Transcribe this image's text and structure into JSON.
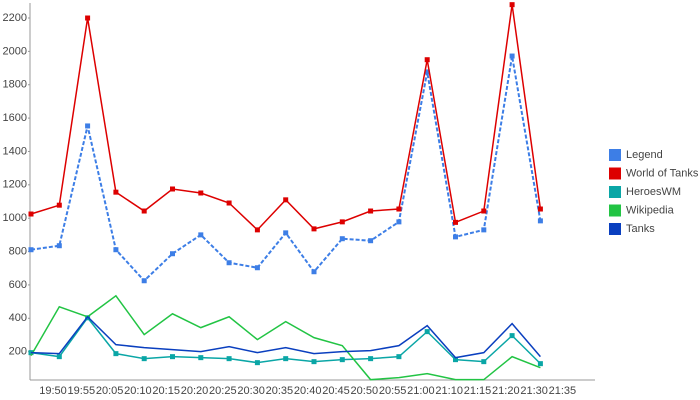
{
  "chart_data": {
    "type": "line",
    "categories": [
      "19:50",
      "19:55",
      "20:05",
      "20:10",
      "20:15",
      "20:20",
      "20:25",
      "20:30",
      "20:35",
      "20:40",
      "20:45",
      "20:50",
      "20:55",
      "21:00",
      "21:10",
      "21:15",
      "21:20",
      "21:30",
      "21:35"
    ],
    "ylim": [
      30,
      2290
    ],
    "yticks": [
      200,
      400,
      600,
      800,
      1000,
      1200,
      1400,
      1600,
      1800,
      2000,
      2200
    ],
    "grid": false,
    "legend": "right",
    "series": [
      {
        "name": "Legend",
        "color": "#3d7ee6",
        "dashed": true,
        "markers": true,
        "values": [
          811,
          835,
          1553,
          811,
          625,
          787,
          900,
          733,
          703,
          912,
          679,
          877,
          865,
          978,
          1877,
          888,
          930,
          1972,
          984
        ]
      },
      {
        "name": "World of Tanks",
        "color": "#dd0000",
        "dashed": false,
        "markers": true,
        "values": [
          1025,
          1078,
          2200,
          1156,
          1043,
          1175,
          1151,
          1091,
          930,
          1110,
          936,
          978,
          1043,
          1055,
          1950,
          975,
          1043,
          2280,
          1055
        ]
      },
      {
        "name": "HeroesWM",
        "color": "#0aa6a6",
        "dashed": false,
        "markers": true,
        "values": [
          194,
          170,
          403,
          188,
          158,
          170,
          164,
          158,
          134,
          158,
          140,
          152,
          158,
          170,
          320,
          152,
          140,
          296,
          128
        ]
      },
      {
        "name": "Wikipedia",
        "color": "#22c444",
        "dashed": false,
        "markers": false,
        "values": [
          176,
          469,
          409,
          535,
          302,
          427,
          344,
          409,
          272,
          380,
          284,
          236,
          32,
          44,
          68,
          32,
          32,
          170,
          104
        ]
      },
      {
        "name": "Tanks",
        "color": "#0a3fbf",
        "dashed": false,
        "markers": false,
        "values": [
          194,
          188,
          409,
          242,
          224,
          212,
          200,
          230,
          194,
          224,
          188,
          200,
          206,
          236,
          356,
          164,
          194,
          368,
          170
        ]
      }
    ]
  }
}
